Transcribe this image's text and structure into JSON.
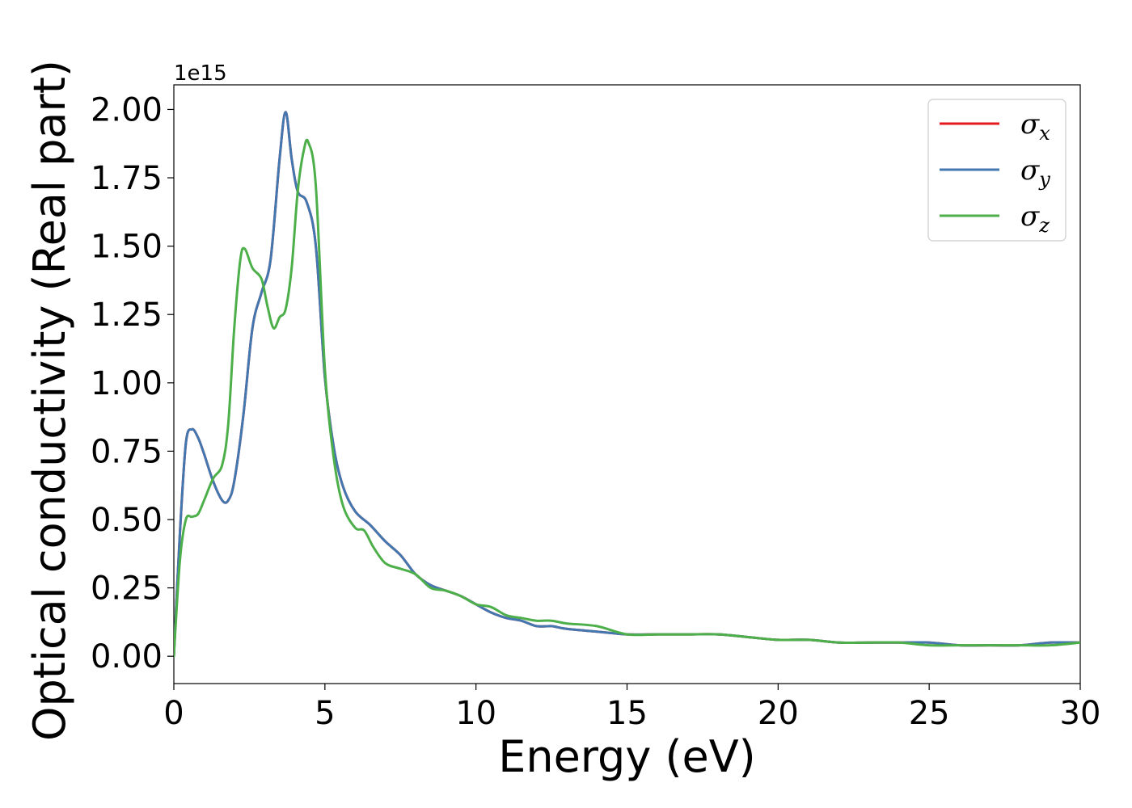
{
  "chart_data": {
    "type": "line",
    "xlabel": "Energy (eV)",
    "ylabel": "Optical conductivity (Real part)",
    "y_offset_label": "1e15",
    "xlim": [
      0,
      30
    ],
    "ylim": [
      -0.1,
      2.09
    ],
    "y_units_multiplier": 1000000000000000.0,
    "x_ticks": [
      0,
      5,
      10,
      15,
      20,
      25,
      30
    ],
    "x_tick_labels": [
      "0",
      "5",
      "10",
      "15",
      "20",
      "25",
      "30"
    ],
    "y_ticks": [
      0.0,
      0.25,
      0.5,
      0.75,
      1.0,
      1.25,
      1.5,
      1.75,
      2.0
    ],
    "y_tick_labels": [
      "0.00",
      "0.25",
      "0.50",
      "0.75",
      "1.00",
      "1.25",
      "1.50",
      "1.75",
      "2.00"
    ],
    "grid": false,
    "legend_position": "top-right",
    "series": [
      {
        "name": "σx",
        "symbol": "σ",
        "sub": "x",
        "color": "#e41a1c",
        "x": [
          0,
          0.2,
          0.4,
          0.6,
          0.8,
          1.0,
          1.3,
          1.6,
          1.8,
          2.0,
          2.3,
          2.6,
          2.9,
          3.2,
          3.5,
          3.7,
          3.9,
          4.1,
          4.4,
          4.7,
          5.0,
          5.3,
          5.6,
          6.0,
          6.5,
          7.0,
          7.5,
          8.0,
          8.5,
          9.0,
          9.5,
          10.0,
          10.5,
          11.0,
          11.5,
          12.0,
          12.5,
          13.0,
          14.0,
          15.0,
          16.0,
          17.0,
          18.0,
          19.0,
          20.0,
          21.0,
          22.0,
          23.0,
          24.0,
          25.0,
          26.0,
          27.0,
          28.0,
          29.0,
          30.0
        ],
        "y": [
          0.0,
          0.45,
          0.78,
          0.83,
          0.8,
          0.74,
          0.64,
          0.57,
          0.57,
          0.64,
          0.88,
          1.2,
          1.33,
          1.45,
          1.82,
          1.99,
          1.82,
          1.7,
          1.66,
          1.5,
          1.02,
          0.76,
          0.62,
          0.53,
          0.48,
          0.42,
          0.37,
          0.3,
          0.26,
          0.24,
          0.22,
          0.19,
          0.16,
          0.14,
          0.13,
          0.11,
          0.11,
          0.1,
          0.09,
          0.08,
          0.08,
          0.08,
          0.08,
          0.07,
          0.06,
          0.06,
          0.05,
          0.05,
          0.05,
          0.05,
          0.04,
          0.04,
          0.04,
          0.05,
          0.05
        ]
      },
      {
        "name": "σy",
        "symbol": "σ",
        "sub": "y",
        "color": "#4377b0",
        "x": [
          0,
          0.2,
          0.4,
          0.6,
          0.8,
          1.0,
          1.3,
          1.6,
          1.8,
          2.0,
          2.3,
          2.6,
          2.9,
          3.2,
          3.5,
          3.7,
          3.9,
          4.1,
          4.4,
          4.7,
          5.0,
          5.3,
          5.6,
          6.0,
          6.5,
          7.0,
          7.5,
          8.0,
          8.5,
          9.0,
          9.5,
          10.0,
          10.5,
          11.0,
          11.5,
          12.0,
          12.5,
          13.0,
          14.0,
          15.0,
          16.0,
          17.0,
          18.0,
          19.0,
          20.0,
          21.0,
          22.0,
          23.0,
          24.0,
          25.0,
          26.0,
          27.0,
          28.0,
          29.0,
          30.0
        ],
        "y": [
          0.0,
          0.45,
          0.78,
          0.83,
          0.8,
          0.74,
          0.64,
          0.57,
          0.57,
          0.64,
          0.88,
          1.2,
          1.33,
          1.45,
          1.82,
          1.99,
          1.82,
          1.7,
          1.66,
          1.5,
          1.02,
          0.76,
          0.62,
          0.53,
          0.48,
          0.42,
          0.37,
          0.3,
          0.26,
          0.24,
          0.22,
          0.19,
          0.16,
          0.14,
          0.13,
          0.11,
          0.11,
          0.1,
          0.09,
          0.08,
          0.08,
          0.08,
          0.08,
          0.07,
          0.06,
          0.06,
          0.05,
          0.05,
          0.05,
          0.05,
          0.04,
          0.04,
          0.04,
          0.05,
          0.05
        ]
      },
      {
        "name": "σz",
        "symbol": "σ",
        "sub": "z",
        "color": "#4daf4a",
        "x": [
          0,
          0.2,
          0.4,
          0.6,
          0.8,
          1.0,
          1.3,
          1.6,
          1.8,
          2.0,
          2.2,
          2.35,
          2.6,
          2.9,
          3.1,
          3.3,
          3.5,
          3.7,
          3.9,
          4.1,
          4.3,
          4.45,
          4.7,
          5.0,
          5.3,
          5.6,
          6.0,
          6.3,
          6.6,
          7.0,
          7.5,
          8.0,
          8.5,
          9.0,
          9.5,
          10.0,
          10.5,
          11.0,
          11.5,
          12.0,
          12.5,
          13.0,
          14.0,
          15.0,
          16.0,
          17.0,
          18.0,
          19.0,
          20.0,
          21.0,
          22.0,
          23.0,
          24.0,
          25.0,
          26.0,
          27.0,
          28.0,
          29.0,
          30.0
        ],
        "y": [
          0.0,
          0.35,
          0.5,
          0.51,
          0.52,
          0.57,
          0.65,
          0.7,
          0.85,
          1.2,
          1.45,
          1.49,
          1.42,
          1.38,
          1.28,
          1.2,
          1.24,
          1.27,
          1.42,
          1.7,
          1.85,
          1.88,
          1.72,
          1.05,
          0.72,
          0.55,
          0.47,
          0.46,
          0.4,
          0.34,
          0.32,
          0.3,
          0.25,
          0.24,
          0.22,
          0.19,
          0.18,
          0.15,
          0.14,
          0.13,
          0.13,
          0.12,
          0.11,
          0.08,
          0.08,
          0.08,
          0.08,
          0.07,
          0.06,
          0.06,
          0.05,
          0.05,
          0.05,
          0.04,
          0.04,
          0.04,
          0.04,
          0.04,
          0.05
        ]
      }
    ]
  }
}
